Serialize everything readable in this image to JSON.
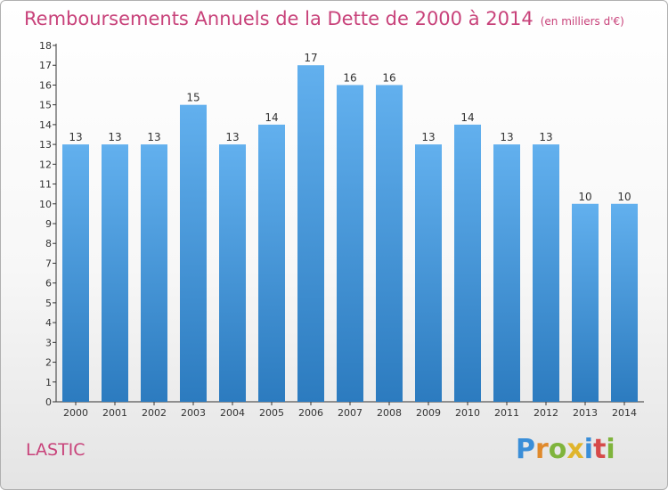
{
  "header": {
    "title": "Remboursements Annuels de la Dette de 2000 à 2014",
    "unit": "(en milliers d'€)"
  },
  "footer": {
    "commune": "LASTIC",
    "logo": [
      "P",
      "r",
      "o",
      "x",
      "i",
      "t",
      "i"
    ]
  },
  "colors": {
    "title": "#c8427a",
    "bar_top": "#62b0ee",
    "bar_bottom": "#2c7bbf"
  },
  "chart_data": {
    "type": "bar",
    "title": "Remboursements Annuels de la Dette de 2000 à 2014",
    "xlabel": "",
    "ylabel": "",
    "categories": [
      "2000",
      "2001",
      "2002",
      "2003",
      "2004",
      "2005",
      "2006",
      "2007",
      "2008",
      "2009",
      "2010",
      "2011",
      "2012",
      "2013",
      "2014"
    ],
    "values": [
      13,
      13,
      13,
      15,
      13,
      14,
      17,
      16,
      16,
      13,
      14,
      13,
      13,
      10,
      10
    ],
    "data_labels": [
      "13",
      "13",
      "13",
      "15",
      "13",
      "14",
      "17",
      "16",
      "16",
      "13",
      "14",
      "13",
      "13",
      "10",
      "10"
    ],
    "y_ticks": [
      "0",
      "1",
      "2",
      "3",
      "4",
      "5",
      "6",
      "7",
      "8",
      "9",
      "10",
      "11",
      "12",
      "13",
      "14",
      "15",
      "16",
      "17",
      "18"
    ],
    "ylim": [
      0,
      18
    ],
    "grid": false,
    "legend": "none"
  }
}
